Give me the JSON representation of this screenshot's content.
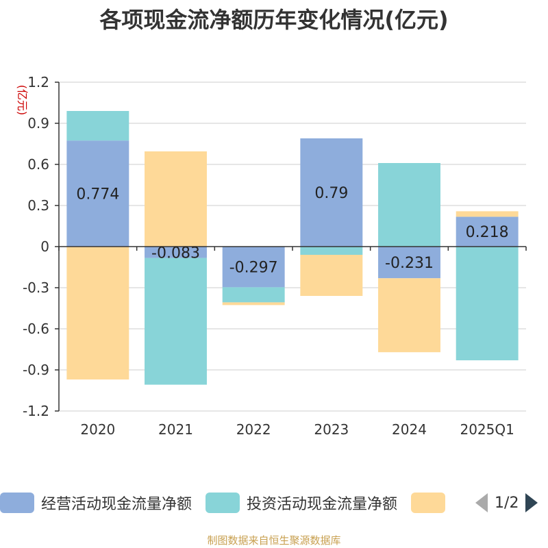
{
  "chart_data": {
    "type": "bar",
    "stacked": true,
    "title": "各项现金流净额历年变化情况(亿元)",
    "ylabel": "(亿元)",
    "categories": [
      "2020",
      "2021",
      "2022",
      "2023",
      "2024",
      "2025Q1"
    ],
    "ylim": [
      -1.2,
      1.2
    ],
    "yticks": [
      1.2,
      0.9,
      0.6,
      0.3,
      0,
      -0.3,
      -0.6,
      -0.9,
      -1.2
    ],
    "ytick_labels": [
      "1.2",
      "0.9",
      "0.6",
      "0.3",
      "0",
      "-0.3",
      "-0.6",
      "-0.9",
      "-1.2"
    ],
    "grid": true,
    "legend_position": "bottom",
    "series": [
      {
        "name": "经营活动现金流量净额",
        "color": "#8eaddc",
        "values": [
          0.774,
          -0.083,
          -0.297,
          0.79,
          -0.231,
          0.218
        ],
        "labels": [
          "0.774",
          "-0.083",
          "-0.297",
          "0.79",
          "-0.231",
          "0.218"
        ]
      },
      {
        "name": "投资活动现金流量净额",
        "color": "#88d4d8",
        "values": [
          0.216,
          -0.925,
          -0.11,
          -0.06,
          0.61,
          -0.83
        ]
      },
      {
        "name": "",
        "color": "#fed998",
        "values": [
          -0.97,
          0.695,
          -0.02,
          -0.3,
          -0.54,
          0.04
        ]
      }
    ]
  },
  "legend": {
    "page_indicator": "1/2"
  },
  "source_note": "制图数据来自恒生聚源数据库"
}
